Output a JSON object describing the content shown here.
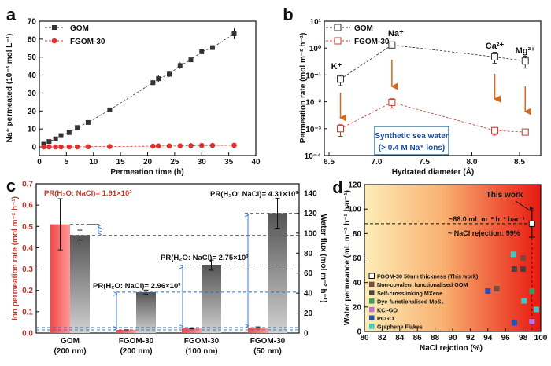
{
  "chart_data": [
    {
      "panel": "a",
      "type": "scatter",
      "xlabel": "Permeation time (h)",
      "ylabel": "Na⁺ permeated (10⁻³ mol L⁻¹)",
      "xlim": [
        0,
        40
      ],
      "ylim": [
        -5,
        70
      ],
      "xticks": [
        0,
        5,
        10,
        15,
        20,
        25,
        30,
        35,
        40
      ],
      "yticks": [
        0,
        10,
        20,
        30,
        40,
        50,
        60,
        70
      ],
      "legend": "top-left",
      "series": [
        {
          "name": "GOM",
          "color": "#333333",
          "marker": "square",
          "x": [
            0.8,
            1.8,
            3,
            4,
            5.5,
            7,
            9,
            13,
            21,
            22,
            24,
            26,
            28,
            30,
            32,
            36
          ],
          "y": [
            1.5,
            3,
            4.5,
            6.3,
            8,
            10.8,
            13.6,
            20.6,
            35.8,
            38,
            40.5,
            45.3,
            48.5,
            53,
            55.3,
            63
          ],
          "err": [
            0,
            0,
            0,
            0,
            0,
            0,
            0,
            0,
            1.5,
            1.8,
            1.5,
            1.8,
            0,
            0,
            0,
            3
          ]
        },
        {
          "name": "FGOM-30",
          "color": "#e03030",
          "marker": "circle",
          "x": [
            0.8,
            1.8,
            3,
            4,
            5.5,
            7,
            9,
            13,
            21,
            22,
            24,
            26,
            28,
            30,
            32,
            36
          ],
          "y": [
            0,
            0,
            0,
            0,
            0,
            0,
            0.1,
            0.2,
            0.4,
            0.5,
            0.5,
            0.6,
            0.7,
            0.8,
            0.8,
            0.9
          ]
        }
      ]
    },
    {
      "panel": "b",
      "type": "scatter",
      "scale": "log",
      "xlabel": "Hydrated diameter (Å)",
      "ylabel": "Permeation rate (mol m⁻² h⁻¹)",
      "xlim": [
        6.42,
        8.8
      ],
      "ylim": [
        0.0001,
        10
      ],
      "xticks": [
        6.5,
        7.0,
        7.5,
        8.0,
        8.5
      ],
      "xtick_labels": [
        "6.5",
        "7.0",
        "7.5",
        "8.0",
        "8.5"
      ],
      "ytick_labels": [
        "10¹",
        "10⁰",
        "10⁻¹",
        "10⁻²",
        "10⁻³",
        "10⁻⁴"
      ],
      "ions": [
        "K⁺",
        "Na⁺",
        "Ca²⁺",
        "Mg²⁺"
      ],
      "x": [
        6.62,
        7.16,
        8.24,
        8.56
      ],
      "series": [
        {
          "name": "GOM",
          "color": "#333333",
          "y": [
            0.07,
            1.3,
            0.47,
            0.33
          ],
          "lo": [
            0.04,
            1.1,
            0.27,
            0.18
          ],
          "hi": [
            0.1,
            1.5,
            0.7,
            0.5
          ]
        },
        {
          "name": "FGOM-30",
          "color": "#c0392b",
          "y": [
            0.001,
            0.0095,
            0.00085,
            0.00075
          ],
          "lo": [
            0.00052,
            0.0058,
            0.00058,
            0.00068
          ],
          "hi": [
            0.0014,
            0.013,
            0.0011,
            0.00082
          ]
        }
      ],
      "annotation": [
        "Synthetic sea water",
        "(> 0.4 M Na⁺ ions)"
      ],
      "arrow_color": "#d2691e"
    },
    {
      "panel": "c",
      "type": "bar",
      "categories": [
        [
          "GOM",
          "(200 nm)"
        ],
        [
          "FGOM-30",
          "(200 nm)"
        ],
        [
          "FGOM-30",
          "(100 nm)"
        ],
        [
          "FGOM-30",
          "(50 nm)"
        ]
      ],
      "ylabel_left": "Ion permeation rate (mol m⁻² h⁻¹)",
      "ylabel_right": "Water flux (mol m⁻² h⁻¹)",
      "ylim_left": [
        0,
        0.7
      ],
      "ylim_right": [
        0,
        147
      ],
      "yticks_left": [
        "0.0",
        "0.1",
        "0.2",
        "0.3",
        "0.4",
        "0.5",
        "0.6",
        "0.7"
      ],
      "yticks_right": [
        0,
        20,
        40,
        60,
        80,
        100,
        120,
        140
      ],
      "series": [
        {
          "name": "Ion permeation rate",
          "axis": "left",
          "color": "#f05a5a",
          "values": [
            0.51,
            0.015,
            0.022,
            0.026
          ],
          "err": [
            0.12,
            0.001,
            0.002,
            0.003
          ]
        },
        {
          "name": "Water flux",
          "axis": "right",
          "color": "#666666",
          "values": [
            98,
            41,
            68,
            120
          ],
          "err": [
            5,
            2,
            5,
            15
          ]
        }
      ],
      "annotations": [
        "PR(H₂O: NaCl)= 1.91×10²",
        "PR(H₂O: NaCl)= 2.96×10³",
        "PR(H₂O: NaCl)= 2.75×10³",
        "PR(H₂O: NaCl)= 4.31×10³"
      ]
    },
    {
      "panel": "d",
      "type": "scatter",
      "xlabel": "NaCl rejction (%)",
      "ylabel": "Water permeance (mL m⁻² h⁻¹ bar⁻¹)",
      "xlim": [
        80,
        100
      ],
      "ylim": [
        0,
        120
      ],
      "xticks": [
        80,
        82,
        84,
        86,
        88,
        90,
        92,
        94,
        96,
        98,
        100
      ],
      "yticks": [
        0,
        20,
        40,
        60,
        80,
        100,
        120
      ],
      "legend": "bottom-left",
      "series": [
        {
          "name": "FGOM-30 50nm thickness (This work)",
          "color": "#ffffff",
          "x": [
            99
          ],
          "y": [
            88
          ],
          "lo": [
            77
          ],
          "hi": [
            99
          ]
        },
        {
          "name": "Non-covalent functionalised GOM",
          "color": "#7a4a40",
          "x": [
            95,
            98
          ],
          "y": [
            35,
            60
          ]
        },
        {
          "name": "Self-crosslinking MXene",
          "color": "#4a4040",
          "x": [
            97,
            98
          ],
          "y": [
            51,
            51
          ]
        },
        {
          "name": "Dye-functionalised MoS₂",
          "color": "#3a9a5a",
          "x": [
            99
          ],
          "y": [
            33
          ]
        },
        {
          "name": "KCl-GO",
          "color": "#c070d8",
          "x": [
            99
          ],
          "y": [
            8
          ]
        },
        {
          "name": "PCGO",
          "color": "#2050c0",
          "x": [
            94,
            97
          ],
          "y": [
            33,
            7
          ]
        },
        {
          "name": "Graphene Flakes",
          "color": "#40c8c8",
          "x": [
            96.9,
            98.1,
            99.5
          ],
          "y": [
            63,
            25,
            18
          ]
        }
      ],
      "annotations": {
        "this_work": "This work",
        "permeance": "~88.0 mL m⁻² h⁻¹ bar⁻¹",
        "rejection": "~ NaCl rejection: 99%"
      }
    }
  ],
  "panel_labels": [
    "a",
    "b",
    "c",
    "d"
  ]
}
